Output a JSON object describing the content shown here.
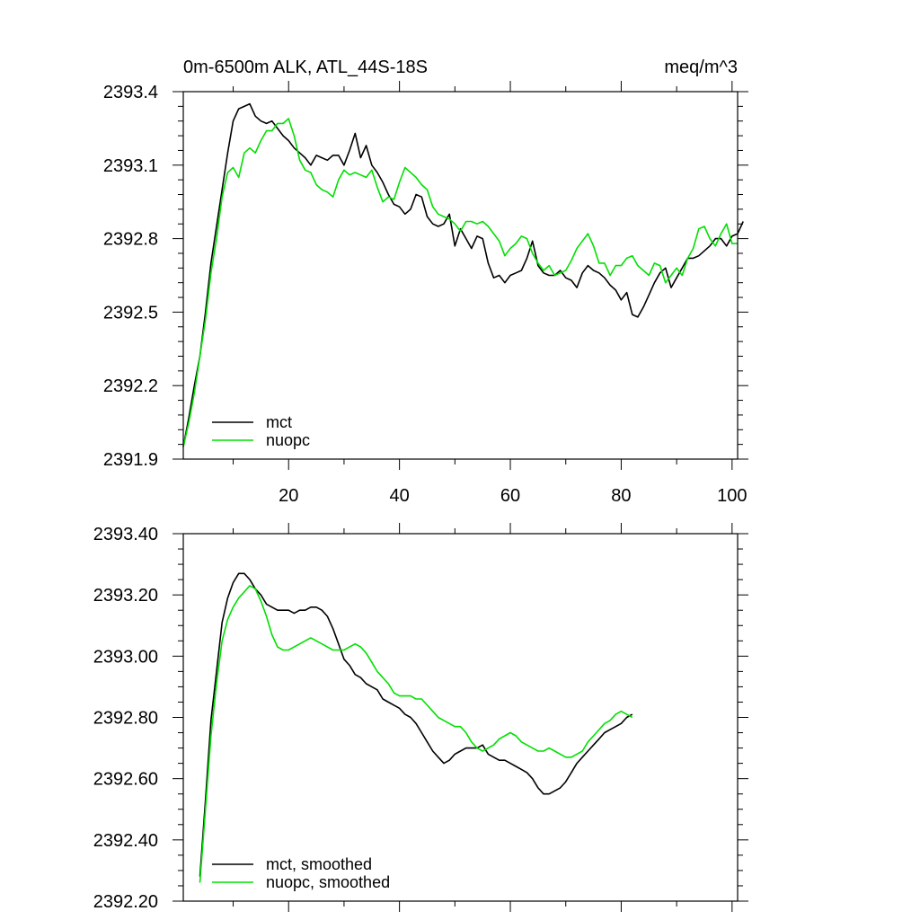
{
  "colors": {
    "mct": "#000000",
    "nuopc": "#00e000",
    "axis": "#000000"
  },
  "chart_data": [
    {
      "type": "line",
      "title_left": "0m-6500m ALK, ATL_44S-18S",
      "title_right": "meq/m^3",
      "xlabel": "",
      "ylabel": "",
      "xlim": [
        1,
        101
      ],
      "ylim": [
        2391.9,
        2393.4
      ],
      "yticks": [
        2391.9,
        2392.2,
        2392.5,
        2392.8,
        2393.1,
        2393.4
      ],
      "ytick_labels": [
        "2391.9",
        "2392.2",
        "2392.5",
        "2392.8",
        "2393.1",
        "2393.4"
      ],
      "xticks": [
        20,
        40,
        60,
        80,
        100
      ],
      "xtick_labels": [
        "20",
        "40",
        "60",
        "80",
        "100"
      ],
      "legend": {
        "placement": "bottom-left",
        "entries": [
          "mct",
          "nuopc"
        ]
      },
      "series": [
        {
          "name": "mct",
          "color_key": "mct",
          "x_start": 1,
          "values": [
            2391.95,
            2392.07,
            2392.2,
            2392.32,
            2392.5,
            2392.7,
            2392.85,
            2393.0,
            2393.15,
            2393.28,
            2393.33,
            2393.34,
            2393.35,
            2393.3,
            2393.28,
            2393.27,
            2393.28,
            2393.25,
            2393.22,
            2393.2,
            2393.17,
            2393.15,
            2393.13,
            2393.1,
            2393.14,
            2393.13,
            2393.12,
            2393.14,
            2393.14,
            2393.1,
            2393.16,
            2393.23,
            2393.13,
            2393.18,
            2393.1,
            2393.07,
            2393.03,
            2392.98,
            2392.94,
            2392.93,
            2392.9,
            2392.92,
            2392.98,
            2392.97,
            2392.89,
            2392.86,
            2392.85,
            2392.86,
            2392.9,
            2392.77,
            2392.84,
            2392.8,
            2392.76,
            2392.81,
            2392.8,
            2392.7,
            2392.64,
            2392.65,
            2392.62,
            2392.65,
            2392.66,
            2392.67,
            2392.72,
            2392.79,
            2392.69,
            2392.66,
            2392.65,
            2392.65,
            2392.67,
            2392.64,
            2392.63,
            2392.6,
            2392.66,
            2392.69,
            2392.67,
            2392.66,
            2392.64,
            2392.61,
            2392.59,
            2392.55,
            2392.58,
            2392.49,
            2392.48,
            2392.52,
            2392.57,
            2392.62,
            2392.66,
            2392.68,
            2392.6,
            2392.64,
            2392.68,
            2392.72,
            2392.72,
            2392.73,
            2392.75,
            2392.77,
            2392.8,
            2392.8,
            2392.77,
            2392.81,
            2392.82,
            2392.87
          ]
        },
        {
          "name": "nuopc",
          "color_key": "nuopc",
          "x_start": 1,
          "values": [
            2391.95,
            2392.05,
            2392.17,
            2392.32,
            2392.47,
            2392.66,
            2392.8,
            2392.97,
            2393.07,
            2393.09,
            2393.05,
            2393.15,
            2393.17,
            2393.15,
            2393.2,
            2393.24,
            2393.24,
            2393.27,
            2393.27,
            2393.29,
            2393.22,
            2393.12,
            2393.08,
            2393.07,
            2393.02,
            2393.0,
            2392.99,
            2392.97,
            2393.04,
            2393.08,
            2393.06,
            2393.07,
            2393.06,
            2393.05,
            2393.08,
            2393.01,
            2392.95,
            2392.97,
            2392.96,
            2393.03,
            2393.09,
            2393.07,
            2393.05,
            2393.02,
            2393.0,
            2392.93,
            2392.9,
            2392.89,
            2392.88,
            2392.86,
            2392.83,
            2392.87,
            2392.87,
            2392.86,
            2392.87,
            2392.85,
            2392.82,
            2392.79,
            2392.73,
            2392.76,
            2392.78,
            2392.81,
            2392.8,
            2392.74,
            2392.7,
            2392.67,
            2392.69,
            2392.65,
            2392.66,
            2392.67,
            2392.71,
            2392.76,
            2392.79,
            2392.82,
            2392.77,
            2392.7,
            2392.7,
            2392.65,
            2392.69,
            2392.69,
            2392.72,
            2392.73,
            2392.69,
            2392.67,
            2392.65,
            2392.7,
            2392.69,
            2392.62,
            2392.65,
            2392.68,
            2392.65,
            2392.72,
            2392.76,
            2392.84,
            2392.85,
            2392.8,
            2392.77,
            2392.82,
            2392.86,
            2392.78,
            2392.78
          ]
        }
      ]
    },
    {
      "type": "line",
      "title_left": "",
      "title_right": "",
      "xlabel": "",
      "ylabel": "",
      "xlim": [
        1,
        101
      ],
      "ylim": [
        2392.2,
        2393.4
      ],
      "yticks": [
        2392.2,
        2392.4,
        2392.6,
        2392.8,
        2393.0,
        2393.2,
        2393.4
      ],
      "ytick_labels": [
        "2392.20",
        "2392.40",
        "2392.60",
        "2392.80",
        "2393.00",
        "2393.20",
        "2393.40"
      ],
      "xticks": [
        20,
        40,
        60,
        80,
        100
      ],
      "xtick_labels": [
        "",
        "",
        "",
        "",
        ""
      ],
      "legend": {
        "placement": "bottom-left",
        "entries": [
          "mct, smoothed",
          "nuopc, smoothed"
        ]
      },
      "series": [
        {
          "name": "mct, smoothed",
          "color_key": "mct",
          "x_start": 4,
          "values": [
            2392.28,
            2392.53,
            2392.79,
            2392.95,
            2393.11,
            2393.19,
            2393.24,
            2393.27,
            2393.27,
            2393.25,
            2393.22,
            2393.2,
            2393.17,
            2393.16,
            2393.15,
            2393.15,
            2393.15,
            2393.14,
            2393.15,
            2393.15,
            2393.16,
            2393.16,
            2393.15,
            2393.13,
            2393.09,
            2393.04,
            2392.99,
            2392.97,
            2392.94,
            2392.93,
            2392.91,
            2392.9,
            2392.89,
            2392.86,
            2392.85,
            2392.84,
            2392.83,
            2392.81,
            2392.8,
            2392.78,
            2392.75,
            2392.72,
            2392.69,
            2392.67,
            2392.65,
            2392.66,
            2392.68,
            2392.69,
            2392.7,
            2392.7,
            2392.7,
            2392.71,
            2392.68,
            2392.67,
            2392.66,
            2392.66,
            2392.65,
            2392.64,
            2392.63,
            2392.62,
            2392.6,
            2392.57,
            2392.55,
            2392.55,
            2392.56,
            2392.57,
            2392.59,
            2392.62,
            2392.65,
            2392.67,
            2392.69,
            2392.71,
            2392.73,
            2392.75,
            2392.76,
            2392.77,
            2392.78,
            2392.8,
            2392.81
          ]
        },
        {
          "name": "nuopc, smoothed",
          "color_key": "nuopc",
          "x_start": 4,
          "values": [
            2392.26,
            2392.5,
            2392.74,
            2392.91,
            2393.05,
            2393.12,
            2393.16,
            2393.19,
            2393.21,
            2393.23,
            2393.22,
            2393.18,
            2393.13,
            2393.07,
            2393.03,
            2393.02,
            2393.02,
            2393.03,
            2393.04,
            2393.05,
            2393.06,
            2393.05,
            2393.04,
            2393.03,
            2393.02,
            2393.02,
            2393.02,
            2393.03,
            2393.04,
            2393.03,
            2393.01,
            2392.98,
            2392.95,
            2392.93,
            2392.91,
            2392.88,
            2392.87,
            2392.87,
            2392.87,
            2392.86,
            2392.86,
            2392.84,
            2392.82,
            2392.8,
            2392.79,
            2392.78,
            2392.77,
            2392.77,
            2392.75,
            2392.72,
            2392.7,
            2392.69,
            2392.7,
            2392.71,
            2392.73,
            2392.74,
            2392.75,
            2392.74,
            2392.72,
            2392.71,
            2392.7,
            2392.69,
            2392.69,
            2392.7,
            2392.69,
            2392.68,
            2392.67,
            2392.67,
            2392.68,
            2392.69,
            2392.72,
            2392.74,
            2392.76,
            2392.78,
            2392.79,
            2392.81,
            2392.82,
            2392.81,
            2392.8
          ]
        }
      ]
    }
  ]
}
